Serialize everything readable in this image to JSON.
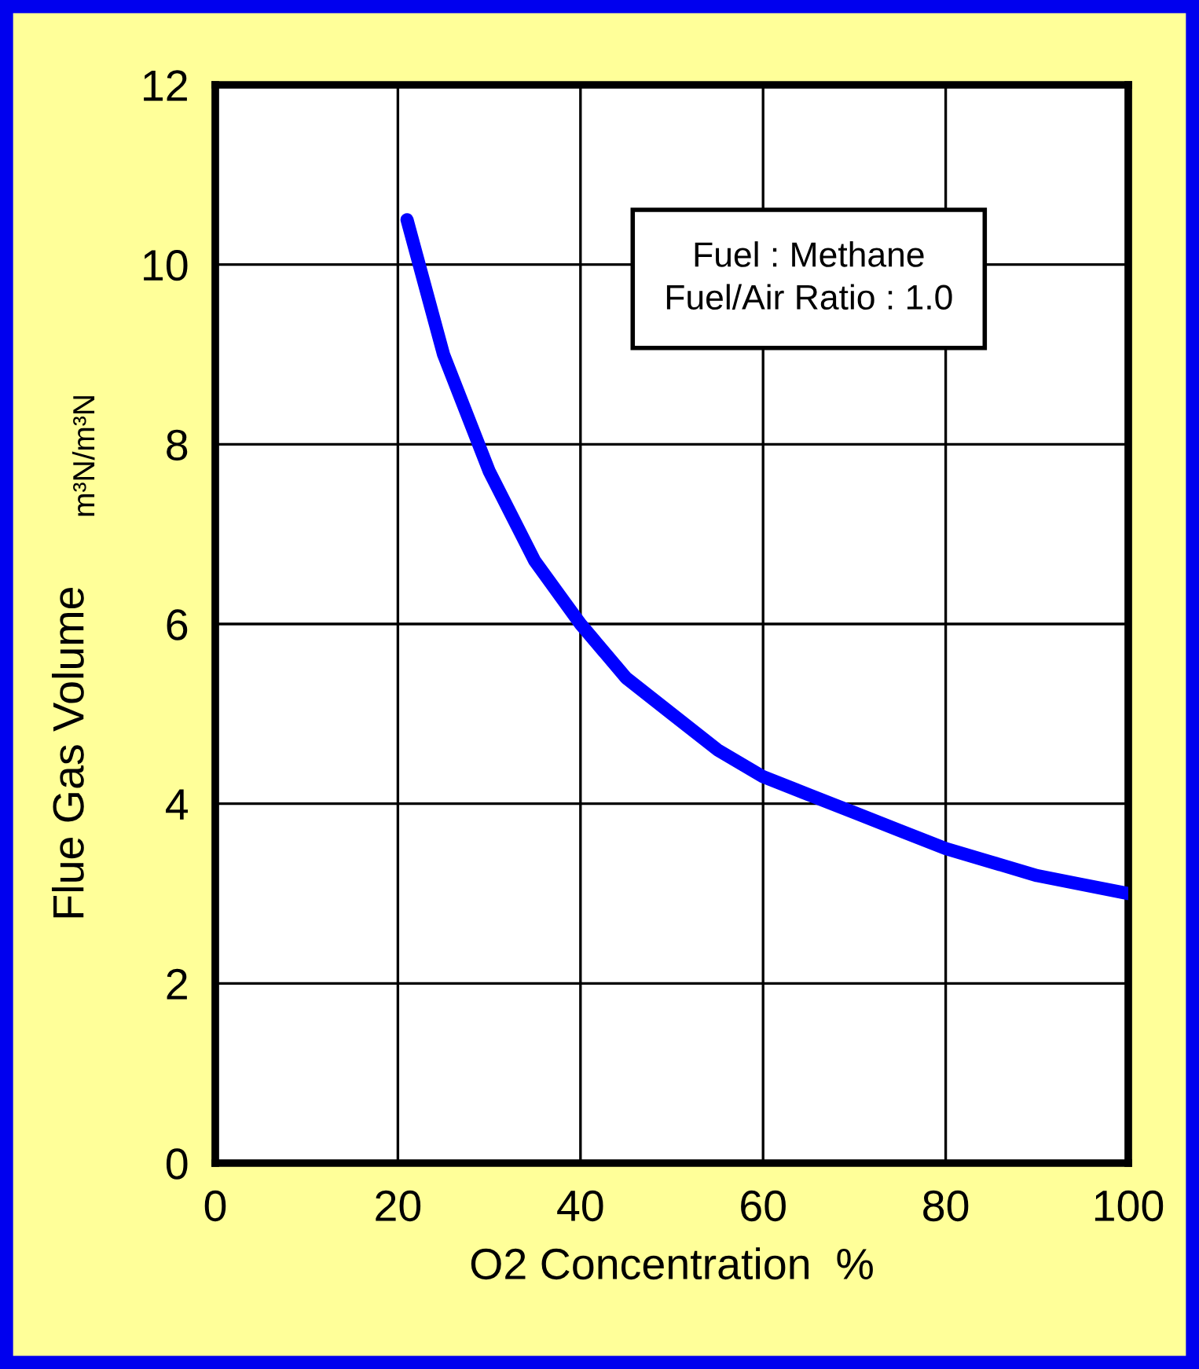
{
  "chart_data": {
    "type": "line",
    "xlabel": "O2 Concentration  %",
    "ylabel": "Flue Gas Volume",
    "annotations": [
      "m³N/m³N",
      "Fuel : Methane\nFuel/Air Ratio : 1.0"
    ],
    "xlim": [
      0,
      100
    ],
    "xticks": [
      0,
      20,
      40,
      60,
      80,
      100
    ],
    "ylim": [
      0,
      12
    ],
    "yticks": [
      0,
      2,
      4,
      6,
      8,
      10,
      12
    ],
    "grid": true,
    "marker": "none",
    "line_style": "solid",
    "series": [
      {
        "color": "#0000ff",
        "x": [
          21,
          25,
          30,
          35,
          40,
          45,
          50,
          55,
          60,
          65,
          70,
          75,
          80,
          85,
          90,
          95,
          100
        ],
        "values": [
          10.5,
          9.0,
          7.7,
          6.7,
          6.0,
          5.4,
          5.0,
          4.6,
          4.3,
          4.1,
          3.9,
          3.7,
          3.5,
          3.35,
          3.2,
          3.1,
          3.0
        ]
      }
    ]
  }
}
